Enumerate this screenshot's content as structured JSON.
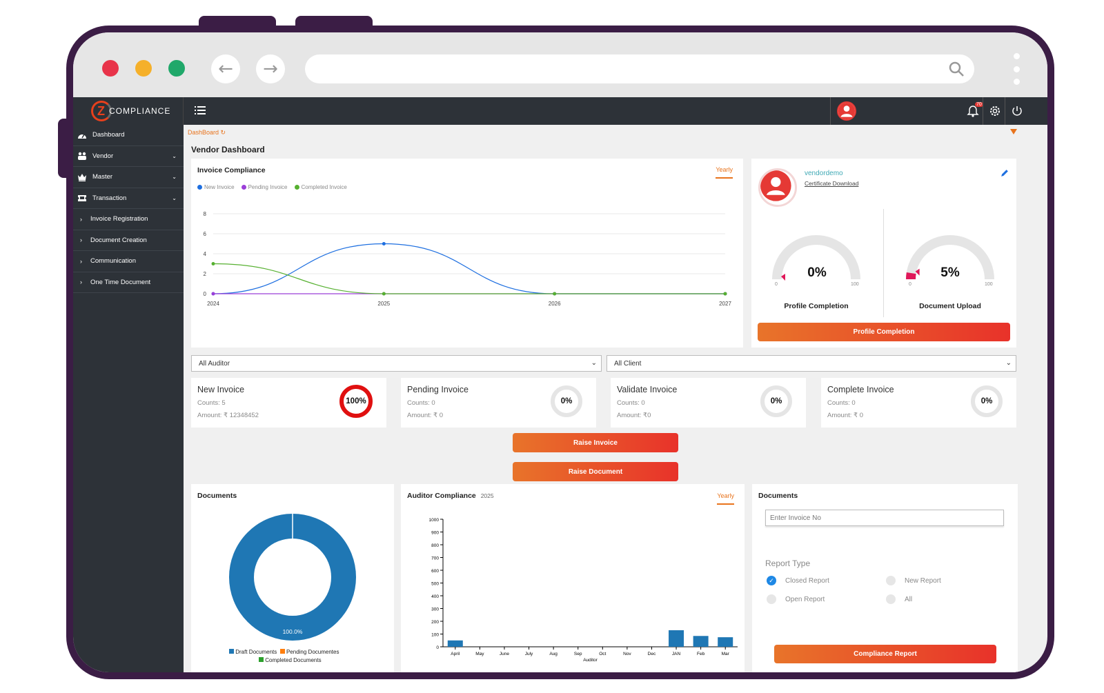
{
  "app": {
    "brand": "COMPLIANCE",
    "notification_count": "70"
  },
  "sidebar": {
    "items": [
      {
        "label": "Dashboard",
        "icon": "dashboard-icon"
      },
      {
        "label": "Vendor",
        "icon": "vendor-icon"
      },
      {
        "label": "Master",
        "icon": "crown-icon"
      },
      {
        "label": "Transaction",
        "icon": "ticket-icon"
      },
      {
        "label": "Invoice Registration"
      },
      {
        "label": "Document Creation"
      },
      {
        "label": "Communication"
      },
      {
        "label": "One Time Document"
      }
    ]
  },
  "breadcrumb": "DashBoard",
  "page_title": "Vendor Dashboard",
  "invoice_compliance": {
    "title": "Invoice Compliance",
    "period": "Yearly",
    "legend": [
      "New Invoice",
      "Pending Invoice",
      "Completed Invoice"
    ]
  },
  "profile": {
    "username": "vendordemo",
    "certificate_link": "Certificate Download",
    "gauges": [
      {
        "value": "0%",
        "min": "0",
        "max": "100",
        "label": "Profile Completion"
      },
      {
        "value": "5%",
        "min": "0",
        "max": "100",
        "label": "Document Upload"
      }
    ],
    "button": "Profile Completion"
  },
  "filters": {
    "auditor": "All Auditor",
    "client": "All Client"
  },
  "stats": [
    {
      "title": "New Invoice",
      "counts": "Counts: 5",
      "amount": "Amount: ₹ 12348452",
      "percent": "100%"
    },
    {
      "title": "Pending Invoice",
      "counts": "Counts: 0",
      "amount": "Amount: ₹ 0",
      "percent": "0%"
    },
    {
      "title": "Validate Invoice",
      "counts": "Counts: 0",
      "amount": "Amount: ₹0",
      "percent": "0%"
    },
    {
      "title": "Complete Invoice",
      "counts": "Counts: 0",
      "amount": "Amount: ₹ 0",
      "percent": "0%"
    }
  ],
  "actions": {
    "raise_invoice": "Raise Invoice",
    "raise_document": "Raise Document"
  },
  "documents_card": {
    "title": "Documents",
    "donut_label": "100.0%",
    "legend": [
      "Draft Documents",
      "Pending Documentes",
      "Completed Documents"
    ]
  },
  "auditor_compliance": {
    "title": "Auditor Compliance",
    "year": "2025",
    "period": "Yearly",
    "xlabel": "Auditor"
  },
  "documents_report": {
    "title": "Documents",
    "invoice_placeholder": "Enter Invoice No",
    "report_type_label": "Report Type",
    "options": [
      {
        "label": "Closed Report",
        "checked": true
      },
      {
        "label": "New Report",
        "checked": false
      },
      {
        "label": "Open Report",
        "checked": false
      },
      {
        "label": "All",
        "checked": false
      }
    ],
    "button": "Compliance Report"
  },
  "chart_data": [
    {
      "type": "line",
      "title": "Invoice Compliance",
      "x": [
        "2024",
        "2025",
        "2026",
        "2027"
      ],
      "ylim": [
        0,
        8
      ],
      "yticks": [
        0,
        2,
        4,
        6,
        8
      ],
      "series": [
        {
          "name": "New Invoice",
          "color": "#1e6fe0",
          "values": [
            0,
            5,
            0,
            0
          ]
        },
        {
          "name": "Pending Invoice",
          "color": "#9b3fd8",
          "values": [
            0,
            0,
            0,
            0
          ]
        },
        {
          "name": "Completed Invoice",
          "color": "#56b030",
          "values": [
            3,
            0,
            0,
            0
          ]
        }
      ]
    },
    {
      "type": "bar",
      "title": "Auditor Compliance",
      "xlabel": "Auditor",
      "categories": [
        "April",
        "May",
        "June",
        "July",
        "Aug",
        "Sep",
        "Oct",
        "Nov",
        "Dec",
        "JAN",
        "Feb",
        "Mar"
      ],
      "values": [
        50,
        0,
        0,
        0,
        0,
        0,
        0,
        0,
        0,
        130,
        85,
        75
      ],
      "ylim": [
        0,
        1000
      ],
      "yticks": [
        0,
        100,
        200,
        300,
        400,
        500,
        600,
        700,
        800,
        900,
        1000
      ],
      "color": "#1f77b4"
    },
    {
      "type": "pie",
      "title": "Documents",
      "labels": [
        "Draft Documents",
        "Pending Documentes",
        "Completed Documents"
      ],
      "values": [
        100,
        0,
        0
      ],
      "colors": [
        "#1f77b4",
        "#ff7f0e",
        "#2ca02c"
      ]
    }
  ]
}
